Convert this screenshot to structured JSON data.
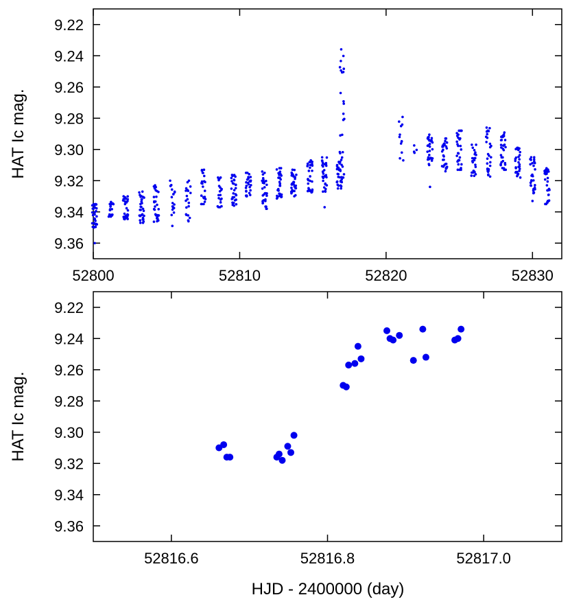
{
  "chart_data": [
    {
      "type": "scatter",
      "title": "",
      "xlabel": "",
      "ylabel": "HAT Ic mag.",
      "xlim": [
        52800,
        52832
      ],
      "ylim": [
        9.21,
        9.37
      ],
      "y_inverted": true,
      "x_ticks": [
        "52800",
        "52810",
        "52820",
        "52830"
      ],
      "y_ticks": [
        "9.22",
        "9.24",
        "9.26",
        "9.28",
        "9.30",
        "9.32",
        "9.34",
        "9.36"
      ],
      "grid": false,
      "marker_color": "#0000ee",
      "nights": [
        {
          "x": 52800.1,
          "mag_range": [
            9.335,
            9.35
          ],
          "n": 30,
          "outliers": [
            9.36
          ]
        },
        {
          "x": 52801.2,
          "mag_range": [
            9.333,
            9.343
          ],
          "n": 18
        },
        {
          "x": 52802.2,
          "mag_range": [
            9.33,
            9.346
          ],
          "n": 30
        },
        {
          "x": 52803.3,
          "mag_range": [
            9.327,
            9.347
          ],
          "n": 30
        },
        {
          "x": 52804.3,
          "mag_range": [
            9.323,
            9.348
          ],
          "n": 30
        },
        {
          "x": 52805.4,
          "mag_range": [
            9.32,
            9.342
          ],
          "n": 18,
          "outliers": [
            9.349
          ]
        },
        {
          "x": 52806.5,
          "mag_range": [
            9.32,
            9.346
          ],
          "n": 20
        },
        {
          "x": 52807.5,
          "mag_range": [
            9.313,
            9.335
          ],
          "n": 22
        },
        {
          "x": 52808.6,
          "mag_range": [
            9.318,
            9.337
          ],
          "n": 20
        },
        {
          "x": 52809.6,
          "mag_range": [
            9.316,
            9.336
          ],
          "n": 30
        },
        {
          "x": 52810.6,
          "mag_range": [
            9.315,
            9.33
          ],
          "n": 28
        },
        {
          "x": 52811.7,
          "mag_range": [
            9.314,
            9.338
          ],
          "n": 30
        },
        {
          "x": 52812.7,
          "mag_range": [
            9.312,
            9.332
          ],
          "n": 30
        },
        {
          "x": 52813.7,
          "mag_range": [
            9.313,
            9.33
          ],
          "n": 30
        },
        {
          "x": 52814.8,
          "mag_range": [
            9.307,
            9.328
          ],
          "n": 30
        },
        {
          "x": 52815.8,
          "mag_range": [
            9.305,
            9.327
          ],
          "n": 30,
          "outliers": [
            9.337
          ]
        },
        {
          "x": 52816.8,
          "mag_range": [
            9.308,
            9.325
          ],
          "n": 30
        },
        {
          "x": 52817.0,
          "mag_range": [
            9.234,
            9.318
          ],
          "n": 24
        },
        {
          "x": 52821.0,
          "mag_range": [
            9.279,
            9.307
          ],
          "n": 12
        },
        {
          "x": 52822.0,
          "mag_range": [
            9.296,
            9.304
          ],
          "n": 4
        },
        {
          "x": 52823.0,
          "mag_range": [
            9.29,
            9.31
          ],
          "n": 30,
          "outliers": [
            9.324
          ]
        },
        {
          "x": 52824.0,
          "mag_range": [
            9.293,
            9.314
          ],
          "n": 30
        },
        {
          "x": 52825.0,
          "mag_range": [
            9.288,
            9.313
          ],
          "n": 30
        },
        {
          "x": 52826.0,
          "mag_range": [
            9.297,
            9.318
          ],
          "n": 24
        },
        {
          "x": 52827.0,
          "mag_range": [
            9.286,
            9.318
          ],
          "n": 30
        },
        {
          "x": 52828.0,
          "mag_range": [
            9.289,
            9.313
          ],
          "n": 30
        },
        {
          "x": 52829.0,
          "mag_range": [
            9.299,
            9.318
          ],
          "n": 30
        },
        {
          "x": 52830.0,
          "mag_range": [
            9.305,
            9.328
          ],
          "n": 30,
          "outliers": [
            9.333
          ]
        },
        {
          "x": 52831.0,
          "mag_range": [
            9.31,
            9.335
          ],
          "n": 30
        }
      ]
    },
    {
      "type": "scatter",
      "title": "",
      "xlabel": "HJD - 2400000 (day)",
      "ylabel": "HAT Ic mag.",
      "xlim": [
        52816.5,
        52817.1
      ],
      "ylim": [
        9.21,
        9.37
      ],
      "y_inverted": true,
      "x_ticks": [
        "52816.6",
        "52816.8",
        "52817.0"
      ],
      "y_ticks": [
        "9.22",
        "9.24",
        "9.26",
        "9.28",
        "9.30",
        "9.32",
        "9.34",
        "9.36"
      ],
      "grid": false,
      "marker_color": "#0000ee",
      "points": [
        {
          "x": 52816.661,
          "y": 9.31
        },
        {
          "x": 52816.667,
          "y": 9.308
        },
        {
          "x": 52816.671,
          "y": 9.316
        },
        {
          "x": 52816.675,
          "y": 9.316
        },
        {
          "x": 52816.735,
          "y": 9.316
        },
        {
          "x": 52816.738,
          "y": 9.314
        },
        {
          "x": 52816.742,
          "y": 9.318
        },
        {
          "x": 52816.749,
          "y": 9.309
        },
        {
          "x": 52816.753,
          "y": 9.313
        },
        {
          "x": 52816.757,
          "y": 9.302
        },
        {
          "x": 52816.82,
          "y": 9.27
        },
        {
          "x": 52816.824,
          "y": 9.271
        },
        {
          "x": 52816.827,
          "y": 9.257
        },
        {
          "x": 52816.835,
          "y": 9.256
        },
        {
          "x": 52816.839,
          "y": 9.245
        },
        {
          "x": 52816.843,
          "y": 9.253
        },
        {
          "x": 52816.876,
          "y": 9.235
        },
        {
          "x": 52816.88,
          "y": 9.24
        },
        {
          "x": 52816.884,
          "y": 9.241
        },
        {
          "x": 52816.892,
          "y": 9.238
        },
        {
          "x": 52816.91,
          "y": 9.254
        },
        {
          "x": 52816.922,
          "y": 9.234
        },
        {
          "x": 52816.926,
          "y": 9.252
        },
        {
          "x": 52816.963,
          "y": 9.241
        },
        {
          "x": 52816.967,
          "y": 9.24
        },
        {
          "x": 52816.971,
          "y": 9.234
        }
      ]
    }
  ]
}
